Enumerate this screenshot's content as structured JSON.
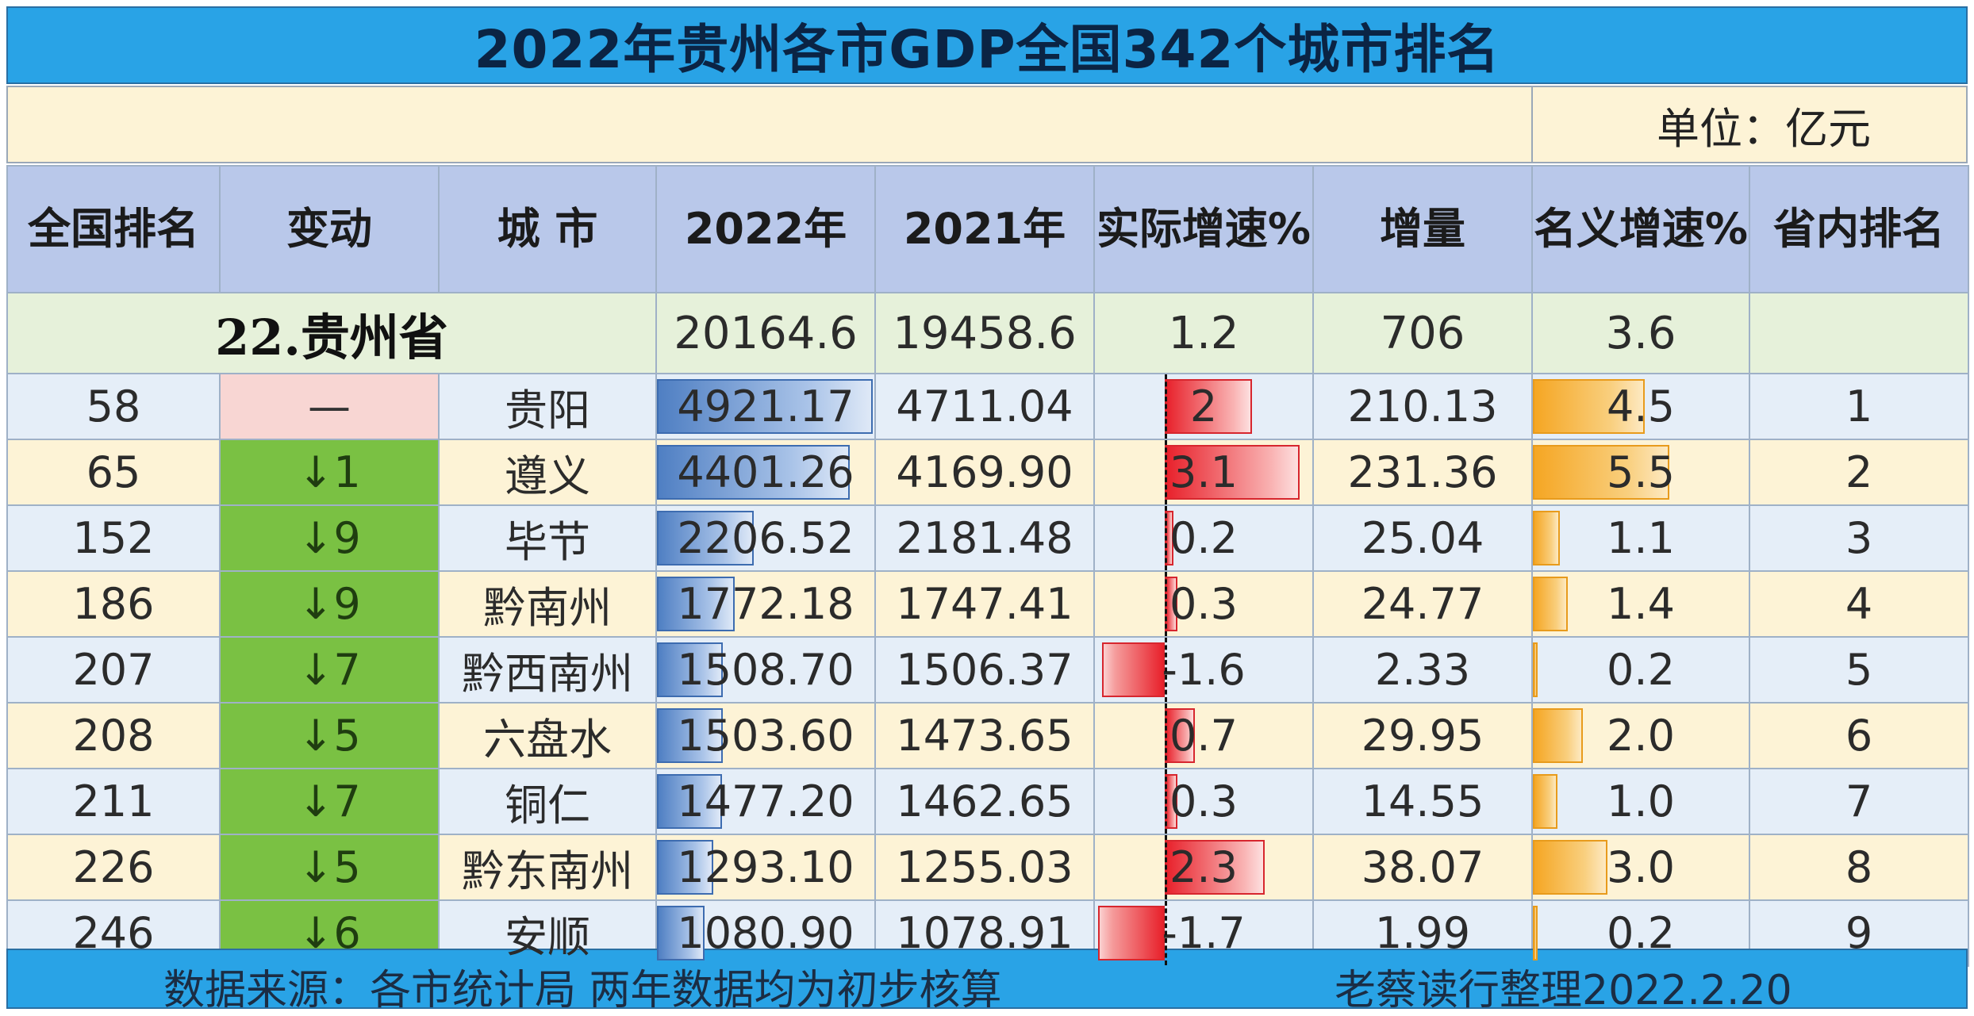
{
  "title": "2022年贵州各市GDP全国342个城市排名",
  "unit_label": "单位：亿元",
  "headers": [
    "全国排名",
    "变动",
    "城 市",
    "2022年",
    "2021年",
    "实际增速%",
    "增量",
    "名义增速%",
    "省内排名"
  ],
  "province": {
    "name": "22.贵州省",
    "gdp_2022": "20164.6",
    "gdp_2021": "19458.6",
    "real_growth": "1.2",
    "increase": "706",
    "nominal_growth": "3.6",
    "province_rank": ""
  },
  "chart_data": {
    "type": "table",
    "title": "2022年贵州各市GDP全国342个城市排名",
    "unit": "亿元",
    "columns": [
      "全国排名",
      "变动",
      "城 市",
      "2022年",
      "2021年",
      "实际增速%",
      "增量",
      "名义增速%",
      "省内排名"
    ],
    "rows": [
      {
        "rank": "58",
        "change": "—",
        "change_dir": "flat",
        "city": "贵阳",
        "gdp_2022": "4921.17",
        "gdp_2021": "4711.04",
        "real_growth": "2",
        "increase": "210.13",
        "nominal_growth": "4.5",
        "province_rank": "1"
      },
      {
        "rank": "65",
        "change": "↓1",
        "change_dir": "down",
        "city": "遵义",
        "gdp_2022": "4401.26",
        "gdp_2021": "4169.90",
        "real_growth": "3.1",
        "increase": "231.36",
        "nominal_growth": "5.5",
        "province_rank": "2"
      },
      {
        "rank": "152",
        "change": "↓9",
        "change_dir": "down",
        "city": "毕节",
        "gdp_2022": "2206.52",
        "gdp_2021": "2181.48",
        "real_growth": "0.2",
        "increase": "25.04",
        "nominal_growth": "1.1",
        "province_rank": "3"
      },
      {
        "rank": "186",
        "change": "↓9",
        "change_dir": "down",
        "city": "黔南州",
        "gdp_2022": "1772.18",
        "gdp_2021": "1747.41",
        "real_growth": "0.3",
        "increase": "24.77",
        "nominal_growth": "1.4",
        "province_rank": "4"
      },
      {
        "rank": "207",
        "change": "↓7",
        "change_dir": "down",
        "city": "黔西南州",
        "gdp_2022": "1508.70",
        "gdp_2021": "1506.37",
        "real_growth": "-1.6",
        "increase": "2.33",
        "nominal_growth": "0.2",
        "province_rank": "5"
      },
      {
        "rank": "208",
        "change": "↓5",
        "change_dir": "down",
        "city": "六盘水",
        "gdp_2022": "1503.60",
        "gdp_2021": "1473.65",
        "real_growth": "0.7",
        "increase": "29.95",
        "nominal_growth": "2.0",
        "province_rank": "6"
      },
      {
        "rank": "211",
        "change": "↓7",
        "change_dir": "down",
        "city": "铜仁",
        "gdp_2022": "1477.20",
        "gdp_2021": "1462.65",
        "real_growth": "0.3",
        "increase": "14.55",
        "nominal_growth": "1.0",
        "province_rank": "7"
      },
      {
        "rank": "226",
        "change": "↓5",
        "change_dir": "down",
        "city": "黔东南州",
        "gdp_2022": "1293.10",
        "gdp_2021": "1255.03",
        "real_growth": "2.3",
        "increase": "38.07",
        "nominal_growth": "3.0",
        "province_rank": "8"
      },
      {
        "rank": "246",
        "change": "↓6",
        "change_dir": "down",
        "city": "安顺",
        "gdp_2022": "1080.90",
        "gdp_2021": "1078.91",
        "real_growth": "-1.7",
        "increase": "1.99",
        "nominal_growth": "0.2",
        "province_rank": "9"
      }
    ],
    "data_bars": {
      "gdp_2022": {
        "color": "#4f7fc3"
      },
      "real_growth": {
        "color": "#e8212b",
        "negative_color": "#e8212b"
      },
      "nominal_growth": {
        "color": "#f5a623"
      }
    }
  },
  "footer": {
    "source": "数据来源：各市统计局 两年数据均为初步核算",
    "credit": "老蔡读行整理2022.2.20"
  }
}
